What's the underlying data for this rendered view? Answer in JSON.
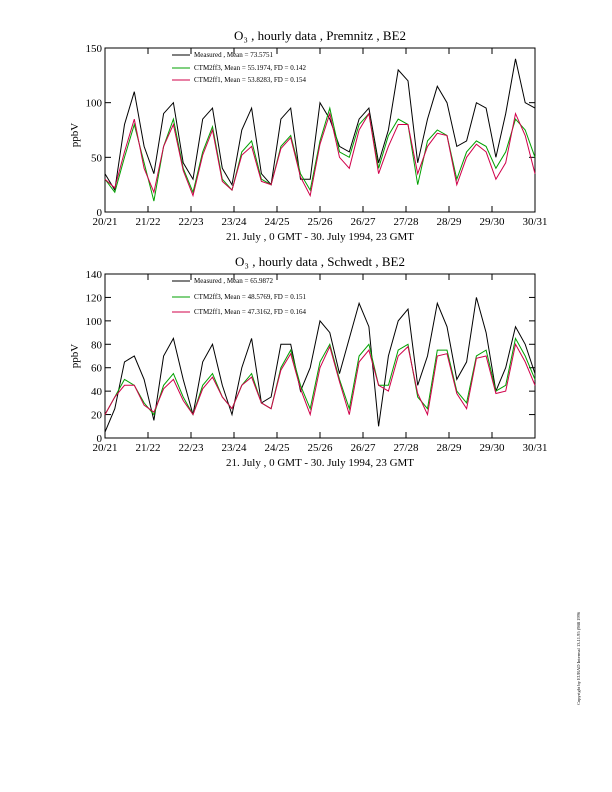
{
  "chart_data": [
    {
      "type": "line",
      "title": "O₃ , hourly data , Premnitz , BE2",
      "xlabel": "21. July , 0 GMT - 30. July 1994, 23 GMT",
      "ylabel": "ppbV",
      "ylim": [
        0,
        150
      ],
      "yticks": [
        0,
        50,
        100,
        150
      ],
      "xlim": [
        0,
        11
      ],
      "xtick_labels": [
        "20/21",
        "21/22",
        "22/23",
        "23/24",
        "24/25",
        "25/26",
        "26/27",
        "27/28",
        "28/29",
        "29/30",
        "30/31"
      ],
      "legend": "top-center",
      "colors": {
        "measured": "#000000",
        "ctm2f3": "#00a000",
        "ctm2f1": "#d0004a"
      },
      "legend_labels": [
        "Measured     , Mean = 73.5751",
        "CTM2ff3, Mean = 55.1974, FD = 0.142",
        "CTM2ff1, Mean = 53.8283, FD = 0.154"
      ],
      "x": [
        0.0,
        0.25,
        0.5,
        0.75,
        1.0,
        1.25,
        1.5,
        1.75,
        2.0,
        2.25,
        2.5,
        2.75,
        3.0,
        3.25,
        3.5,
        3.75,
        4.0,
        4.25,
        4.5,
        4.75,
        5.0,
        5.25,
        5.5,
        5.75,
        6.0,
        6.25,
        6.5,
        6.75,
        7.0,
        7.25,
        7.5,
        7.75,
        8.0,
        8.25,
        8.5,
        8.75,
        9.0,
        9.25,
        9.5,
        9.75,
        10.0,
        10.25,
        10.5,
        10.75,
        11.0
      ],
      "series": [
        {
          "name": "Measured",
          "values": [
            35,
            20,
            80,
            110,
            60,
            35,
            90,
            100,
            45,
            30,
            85,
            95,
            40,
            25,
            75,
            95,
            35,
            25,
            85,
            95,
            30,
            30,
            100,
            85,
            60,
            55,
            85,
            95,
            45,
            75,
            130,
            120,
            45,
            85,
            115,
            100,
            60,
            65,
            100,
            95,
            50,
            90,
            140,
            100,
            95
          ]
        },
        {
          "name": "CTM2ff3",
          "values": [
            30,
            18,
            50,
            80,
            45,
            10,
            60,
            85,
            40,
            18,
            55,
            78,
            30,
            20,
            55,
            65,
            30,
            25,
            60,
            70,
            35,
            20,
            65,
            95,
            55,
            50,
            80,
            90,
            40,
            70,
            85,
            80,
            25,
            65,
            75,
            70,
            30,
            55,
            65,
            60,
            40,
            55,
            85,
            75,
            50
          ]
        },
        {
          "name": "CTM2ff1",
          "values": [
            30,
            22,
            55,
            85,
            40,
            18,
            60,
            80,
            38,
            15,
            52,
            75,
            28,
            20,
            52,
            60,
            28,
            25,
            58,
            68,
            32,
            15,
            62,
            90,
            50,
            40,
            75,
            90,
            35,
            60,
            80,
            80,
            35,
            60,
            72,
            70,
            25,
            50,
            62,
            55,
            30,
            45,
            90,
            70,
            35
          ]
        }
      ]
    },
    {
      "type": "line",
      "title": "O₃ , hourly data , Schwedt , BE2",
      "xlabel": "21. July , 0 GMT - 30. July 1994, 23 GMT",
      "ylabel": "ppbV",
      "ylim": [
        0,
        140
      ],
      "yticks": [
        0,
        20,
        40,
        60,
        80,
        100,
        120,
        140
      ],
      "xlim": [
        0,
        11
      ],
      "xtick_labels": [
        "20/21",
        "21/22",
        "22/23",
        "23/24",
        "24/25",
        "25/26",
        "26/27",
        "27/28",
        "28/29",
        "29/30",
        "30/31"
      ],
      "legend": "top-center",
      "colors": {
        "measured": "#000000",
        "ctm2f3": "#00a000",
        "ctm2f1": "#d0004a"
      },
      "legend_labels": [
        "Measured     , Mean = 65.9872",
        "CTM2ff3, Mean = 48.5769, FD = 0.151",
        "CTM2ff1, Mean = 47.3162, FD = 0.164"
      ],
      "x": [
        0.0,
        0.25,
        0.5,
        0.75,
        1.0,
        1.25,
        1.5,
        1.75,
        2.0,
        2.25,
        2.5,
        2.75,
        3.0,
        3.25,
        3.5,
        3.75,
        4.0,
        4.25,
        4.5,
        4.75,
        5.0,
        5.25,
        5.5,
        5.75,
        6.0,
        6.25,
        6.5,
        6.75,
        7.0,
        7.25,
        7.5,
        7.75,
        8.0,
        8.25,
        8.5,
        8.75,
        9.0,
        9.25,
        9.5,
        9.75,
        10.0,
        10.25,
        10.5,
        10.75,
        11.0
      ],
      "series": [
        {
          "name": "Measured",
          "values": [
            5,
            25,
            65,
            70,
            50,
            15,
            70,
            85,
            50,
            20,
            65,
            80,
            45,
            20,
            60,
            85,
            30,
            35,
            80,
            80,
            40,
            60,
            100,
            90,
            55,
            85,
            115,
            95,
            10,
            70,
            100,
            110,
            45,
            70,
            115,
            95,
            50,
            65,
            120,
            90,
            40,
            60,
            95,
            80,
            55
          ]
        },
        {
          "name": "CTM2ff3",
          "values": [
            20,
            35,
            50,
            45,
            30,
            20,
            45,
            55,
            35,
            20,
            45,
            55,
            35,
            25,
            45,
            55,
            30,
            25,
            60,
            75,
            45,
            25,
            65,
            80,
            50,
            25,
            70,
            80,
            45,
            45,
            75,
            80,
            35,
            25,
            75,
            75,
            40,
            30,
            70,
            75,
            40,
            45,
            85,
            70,
            50
          ]
        },
        {
          "name": "CTM2ff1",
          "values": [
            20,
            35,
            45,
            45,
            28,
            22,
            42,
            50,
            32,
            20,
            42,
            52,
            35,
            25,
            45,
            52,
            30,
            25,
            58,
            72,
            42,
            20,
            60,
            78,
            48,
            20,
            65,
            75,
            45,
            40,
            70,
            78,
            38,
            20,
            70,
            72,
            38,
            25,
            68,
            70,
            38,
            40,
            80,
            65,
            45
          ]
        }
      ]
    }
  ],
  "copyright": "Copyright by EURAD Intermal 13.11.95 (988 1996"
}
